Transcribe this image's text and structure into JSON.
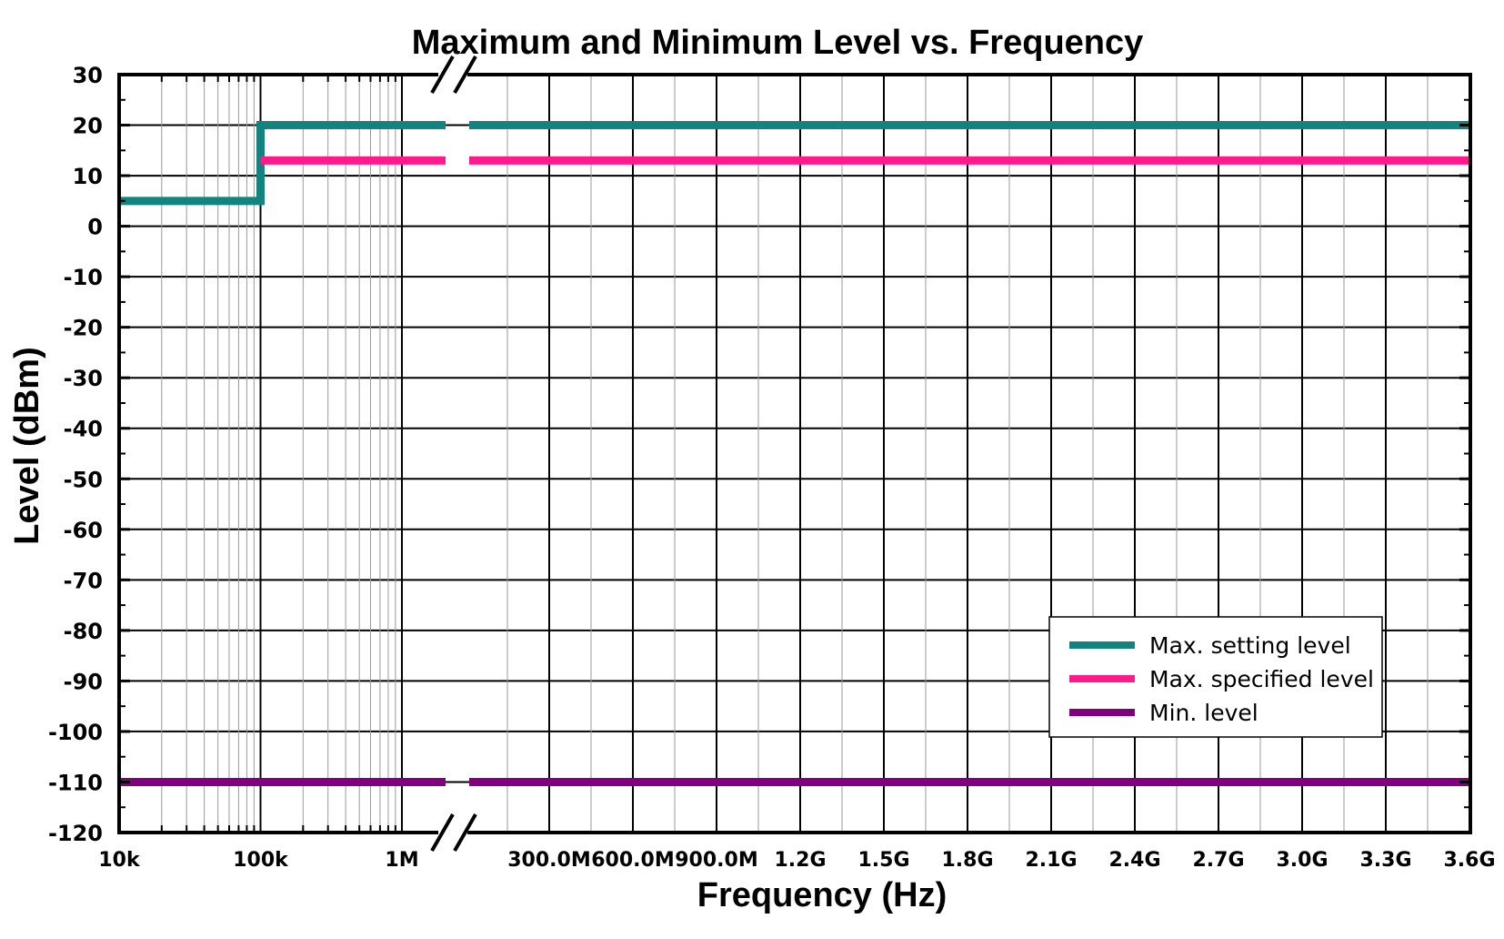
{
  "chart_data": {
    "type": "line",
    "title": "Maximum and Minimum Level vs. Frequency",
    "xlabel": "Frequency (Hz)",
    "ylabel": "Level (dBm)",
    "ylim": [
      -120,
      30
    ],
    "yticks": [
      30,
      20,
      10,
      0,
      -10,
      -20,
      -30,
      -40,
      -50,
      -60,
      -70,
      -80,
      -90,
      -100,
      -110,
      -120
    ],
    "x_axis": {
      "log_segment": {
        "range_hz": [
          10000,
          1000000
        ],
        "tick_labels": [
          "10k",
          "100k",
          "1M"
        ]
      },
      "axis_break": true,
      "linear_segment": {
        "range_hz": [
          0,
          3600000000
        ],
        "tick_labels": [
          "300.0M",
          "600.0M",
          "900.0M",
          "1.2G",
          "1.5G",
          "1.8G",
          "2.1G",
          "2.4G",
          "2.7G",
          "3.0G",
          "3.3G",
          "3.6G"
        ]
      }
    },
    "grid": true,
    "legend_position": "bottom-right",
    "series": [
      {
        "name": "Max. setting level",
        "color": "#13837f",
        "points": [
          [
            10000,
            5
          ],
          [
            100000,
            5
          ],
          [
            100000,
            20
          ],
          [
            3600000000,
            20
          ]
        ]
      },
      {
        "name": "Max. specified level",
        "color": "#ff1a8c",
        "points": [
          [
            100000,
            13
          ],
          [
            3600000000,
            13
          ]
        ]
      },
      {
        "name": "Min. level",
        "color": "#800080",
        "points": [
          [
            10000,
            -110
          ],
          [
            3600000000,
            -110
          ]
        ]
      }
    ]
  }
}
